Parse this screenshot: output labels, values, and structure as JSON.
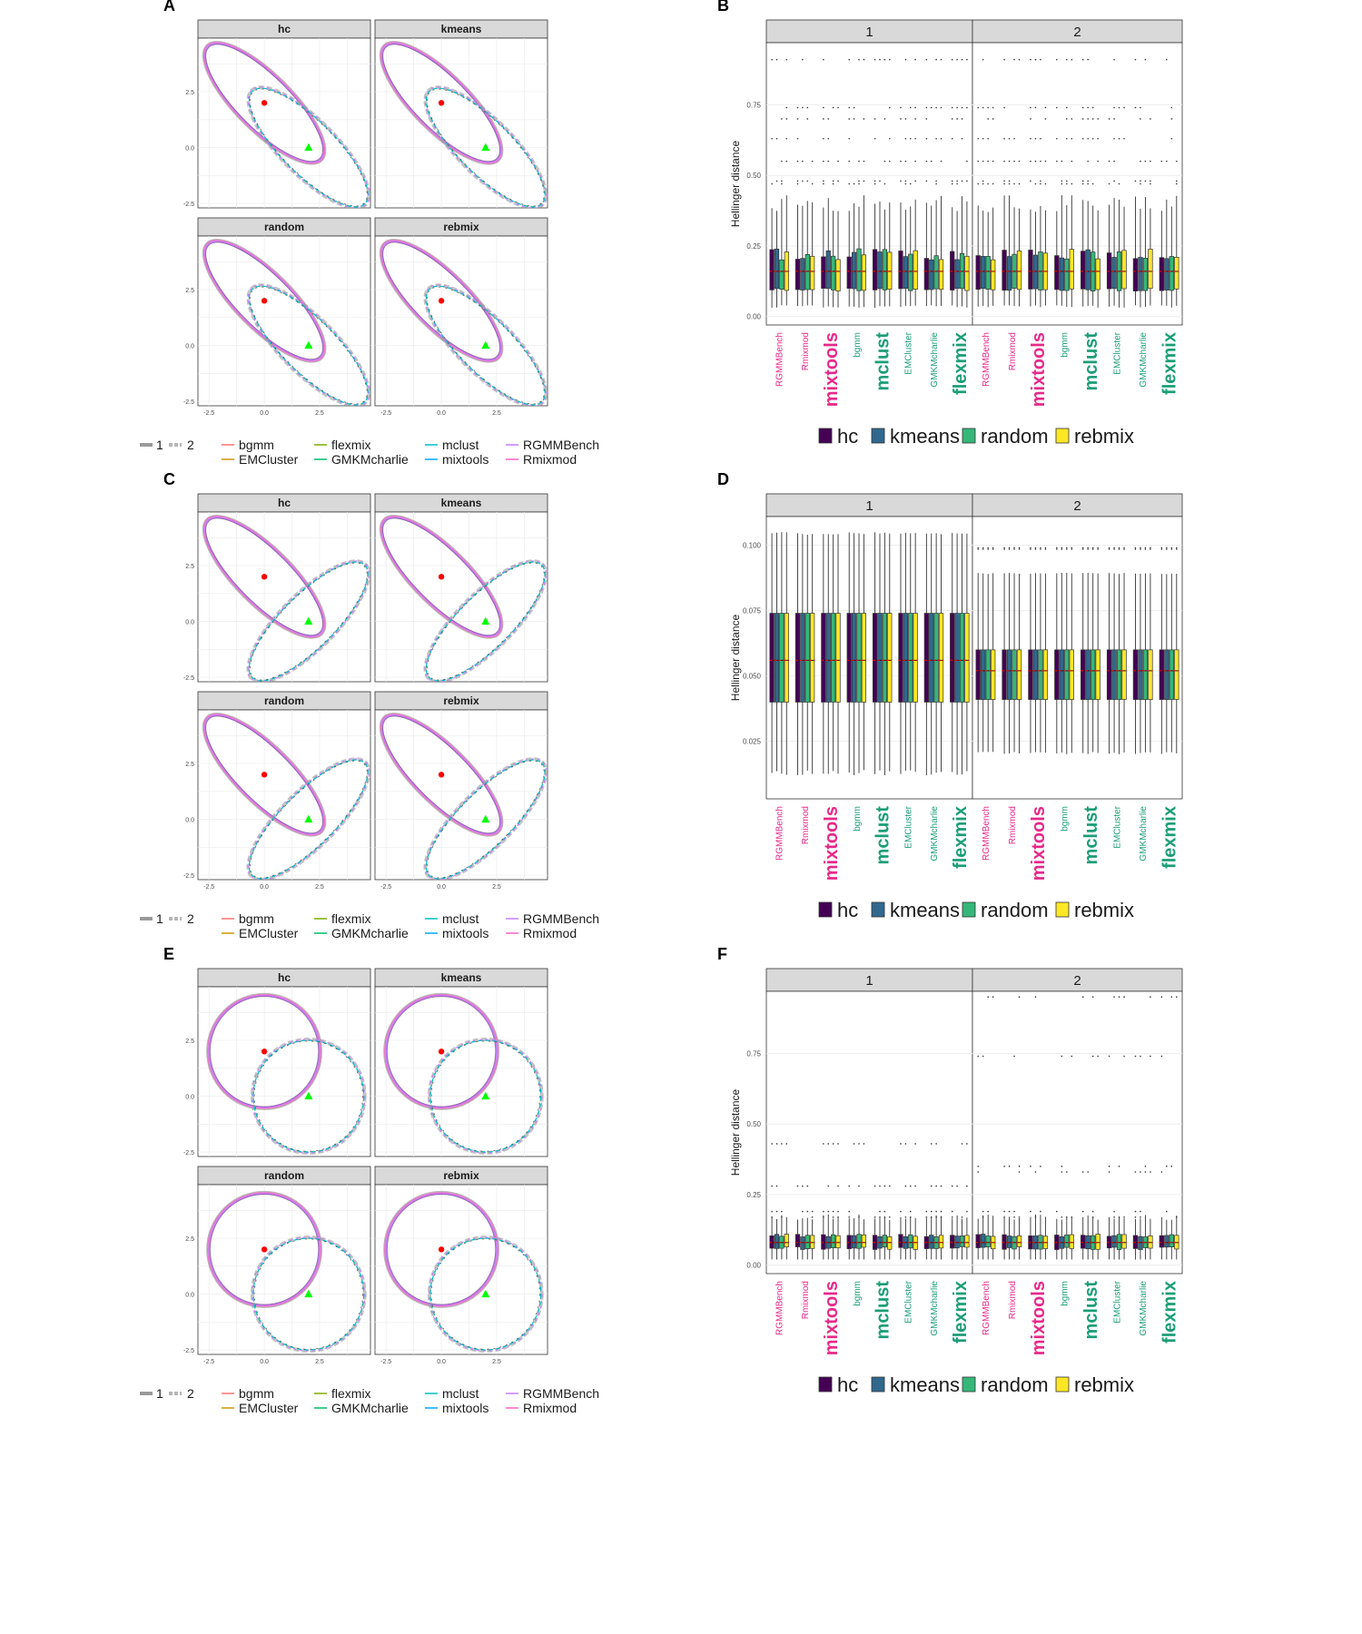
{
  "figure_panels": [
    {
      "letter": "A",
      "kind": "ellipse",
      "shape": "ellipse"
    },
    {
      "letter": "B",
      "kind": "box",
      "variant": "B"
    },
    {
      "letter": "C",
      "kind": "ellipse",
      "shape": "ellipse"
    },
    {
      "letter": "D",
      "kind": "box",
      "variant": "D"
    },
    {
      "letter": "E",
      "kind": "ellipse",
      "shape": "circle"
    },
    {
      "letter": "F",
      "kind": "box",
      "variant": "F"
    }
  ],
  "facet_titles": [
    "hc",
    "kmeans",
    "random",
    "rebmix"
  ],
  "legend_lines": {
    "components": [
      "1",
      "2"
    ],
    "packages": [
      "bgmm",
      "EMCluster",
      "flexmix",
      "GMKMcharlie",
      "mclust",
      "mixtools",
      "RGMMBench",
      "Rmixmod"
    ],
    "package_colors": [
      "#F8766D",
      "#CD9600",
      "#7CAE00",
      "#00BE67",
      "#00BFC4",
      "#00A9FF",
      "#C77CFF",
      "#FF61CC"
    ]
  },
  "legend_fill": {
    "labels": [
      "hc",
      "kmeans",
      "random",
      "rebmix"
    ],
    "colors": [
      "#440154",
      "#31688E",
      "#35B779",
      "#FDE725"
    ]
  },
  "box_ylabel": "Hellinger distance",
  "box_strips": [
    "1",
    "2"
  ],
  "packages_x": [
    {
      "label": "RGMMBench",
      "color": "#E7298A",
      "big": false
    },
    {
      "label": "Rmixmod",
      "color": "#E7298A",
      "big": false
    },
    {
      "label": "mixtools",
      "color": "#E7298A",
      "big": true
    },
    {
      "label": "bgmm",
      "color": "#1B9E77",
      "big": false
    },
    {
      "label": "mclust",
      "color": "#1B9E77",
      "big": true
    },
    {
      "label": "EMCluster",
      "color": "#1B9E77",
      "big": false
    },
    {
      "label": "GMKMcharlie",
      "color": "#1B9E77",
      "big": false
    },
    {
      "label": "flexmix",
      "color": "#1B9E77",
      "big": true
    }
  ],
  "chart_data": [
    {
      "panel": "A",
      "type": "scatter",
      "description_axes": {
        "x_ticks": [
          "-2.5",
          "0.0",
          "2.5"
        ],
        "y_ticks": [
          "-2.5",
          "0.0",
          "2.5"
        ],
        "xlim": [
          -3.0,
          4.8
        ],
        "ylim": [
          -2.7,
          4.9
        ]
      },
      "true_means": {
        "component_1": [
          0,
          2
        ],
        "component_2": [
          2,
          0
        ]
      },
      "ellipse_1": {
        "center": [
          0,
          2
        ],
        "a": 3.6,
        "b": 1.2,
        "angle_deg": -45
      },
      "ellipse_2": {
        "center": [
          2,
          0
        ],
        "a": 3.6,
        "b": 1.2,
        "angle_deg": -45
      }
    },
    {
      "panel": "B",
      "type": "box",
      "y_ticks": [
        "0.00",
        "0.25",
        "0.50",
        "0.75"
      ],
      "ylim": [
        -0.03,
        0.97
      ],
      "strip_1_median": 0.16,
      "strip_2_median": 0.16
    },
    {
      "panel": "C",
      "type": "scatter",
      "description_axes": {
        "x_ticks": [
          "-2.5",
          "0.0",
          "2.5"
        ],
        "y_ticks": [
          "-2.5",
          "0.0",
          "2.5"
        ],
        "xlim": [
          -3.0,
          4.8
        ],
        "ylim": [
          -2.7,
          4.9
        ]
      },
      "true_means": {
        "component_1": [
          0,
          2
        ],
        "component_2": [
          2,
          0
        ]
      },
      "ellipse_1": {
        "center": [
          0,
          2
        ],
        "a": 3.6,
        "b": 1.2,
        "angle_deg": -45
      },
      "ellipse_2": {
        "center": [
          2,
          0
        ],
        "a": 3.6,
        "b": 1.2,
        "angle_deg": 45
      }
    },
    {
      "panel": "D",
      "type": "box",
      "y_ticks": [
        "0.025",
        "0.050",
        "0.075",
        "0.100"
      ],
      "ylim": [
        0.003,
        0.111
      ],
      "strip_1_median": 0.056,
      "strip_2_median": 0.052
    },
    {
      "panel": "E",
      "type": "scatter",
      "description_axes": {
        "x_ticks": [
          "-2.5",
          "0.0",
          "2.5"
        ],
        "y_ticks": [
          "-2.5",
          "0.0",
          "2.5"
        ],
        "xlim": [
          -3.0,
          4.8
        ],
        "ylim": [
          -2.7,
          4.9
        ]
      },
      "true_means": {
        "component_1": [
          0,
          2
        ],
        "component_2": [
          2,
          0
        ]
      },
      "circle_1": {
        "center": [
          0,
          2
        ],
        "r": 2.5
      },
      "circle_2": {
        "center": [
          2,
          0
        ],
        "r": 2.5
      }
    },
    {
      "panel": "F",
      "type": "box",
      "y_ticks": [
        "0.00",
        "0.25",
        "0.50",
        "0.75"
      ],
      "ylim": [
        -0.03,
        0.97
      ],
      "strip_1_median": 0.08,
      "strip_2_median": 0.08
    }
  ]
}
